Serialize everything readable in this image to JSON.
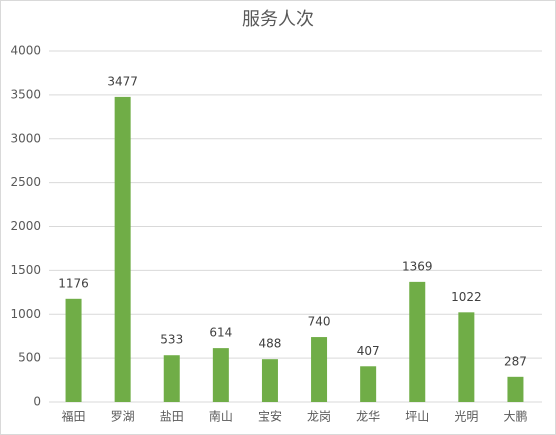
{
  "chart_data": {
    "type": "bar",
    "title": "服务人次",
    "categories": [
      "福田",
      "罗湖",
      "盐田",
      "南山",
      "宝安",
      "龙岗",
      "龙华",
      "坪山",
      "光明",
      "大鹏"
    ],
    "values": [
      1176,
      3477,
      533,
      614,
      488,
      740,
      407,
      1369,
      1022,
      287
    ],
    "color": "#70ad47",
    "ylim": [
      0,
      4000
    ],
    "yticks": [
      0,
      500,
      1000,
      1500,
      2000,
      2500,
      3000,
      3500,
      4000
    ],
    "grid": true,
    "data_labels": true
  }
}
